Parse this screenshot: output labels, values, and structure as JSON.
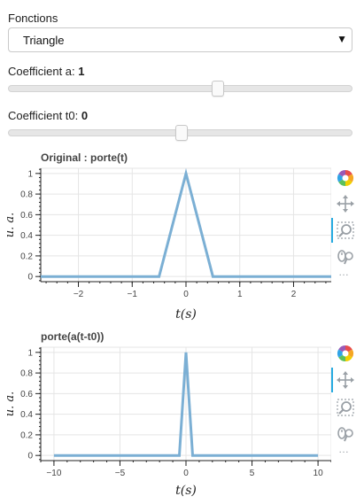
{
  "functions": {
    "label": "Fonctions",
    "selected": "Triangle"
  },
  "coef_a": {
    "label": "Coefficient a: ",
    "value": "1",
    "slider_fraction": 0.61
  },
  "coef_t0": {
    "label": "Coefficient t0: ",
    "value": "0",
    "slider_fraction": 0.5
  },
  "toolbar": {
    "icons": [
      "bokeh-logo-icon",
      "pan-icon",
      "box-zoom-icon",
      "wheel-zoom-icon",
      "more-icon"
    ],
    "more": "…"
  },
  "chart_data": [
    {
      "type": "line",
      "title": "Original : porte(t)",
      "xlabel": "t(s)",
      "ylabel": "u. a.",
      "xlim": [
        -2.7,
        2.7
      ],
      "ylim": [
        -0.05,
        1.05
      ],
      "xticks": [
        -2,
        -1,
        0,
        1,
        2
      ],
      "xtick_labels": [
        "−2",
        "−1",
        "0",
        "1",
        "2"
      ],
      "yticks": [
        0,
        0.2,
        0.4,
        0.6,
        0.8,
        1
      ],
      "ytick_labels": [
        "0",
        "0.2",
        "0.4",
        "0.6",
        "0.8",
        "1"
      ],
      "grid": true,
      "series": [
        {
          "x": [
            -2.7,
            -0.5,
            0,
            0.5,
            2.7
          ],
          "y": [
            0,
            0,
            1,
            0,
            0
          ],
          "color": "#7bafd4"
        }
      ]
    },
    {
      "type": "line",
      "title": "porte(a(t-t0))",
      "xlabel": "t(s)",
      "ylabel": "u. a.",
      "xlim": [
        -11,
        11
      ],
      "ylim": [
        -0.05,
        1.05
      ],
      "xticks": [
        -10,
        -5,
        0,
        5,
        10
      ],
      "xtick_labels": [
        "−10",
        "−5",
        "0",
        "5",
        "10"
      ],
      "yticks": [
        0,
        0.2,
        0.4,
        0.6,
        0.8,
        1
      ],
      "ytick_labels": [
        "0",
        "0.2",
        "0.4",
        "0.6",
        "0.8",
        "1"
      ],
      "grid": true,
      "series": [
        {
          "x": [
            -10,
            -0.5,
            0,
            0.5,
            10
          ],
          "y": [
            0,
            0,
            1,
            0,
            0
          ],
          "color": "#7bafd4"
        }
      ]
    }
  ]
}
